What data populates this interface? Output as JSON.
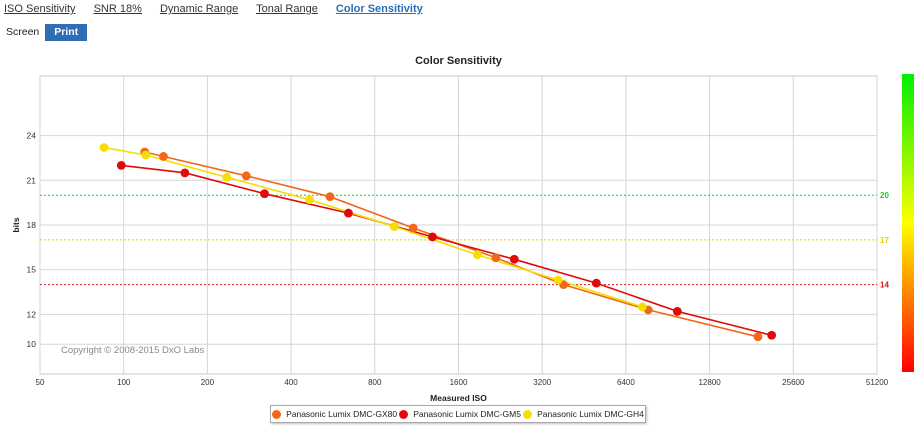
{
  "tabs": [
    {
      "label": "ISO Sensitivity",
      "active": false
    },
    {
      "label": "SNR 18%",
      "active": false
    },
    {
      "label": "Dynamic Range",
      "active": false
    },
    {
      "label": "Tonal Range",
      "active": false
    },
    {
      "label": "Color Sensitivity",
      "active": true
    }
  ],
  "view_toggle": {
    "screen_label": "Screen",
    "print_label": "Print",
    "selected": "Print"
  },
  "chart_data": {
    "type": "line",
    "title": "Color Sensitivity",
    "xlabel": "Measured ISO",
    "ylabel": "bits",
    "x_scale": "log2",
    "xlim": [
      50,
      51200
    ],
    "ylim": [
      8,
      28
    ],
    "x_ticks": [
      "50",
      "100",
      "200",
      "400",
      "800",
      "1600",
      "3200",
      "6400",
      "12800",
      "25600",
      "51200"
    ],
    "y_ticks": [
      10,
      12,
      15,
      18,
      21,
      24
    ],
    "grid": true,
    "copyright": "Copyright © 2008-2015 DxO Labs",
    "reference_lines": [
      {
        "value": 20,
        "label": "20",
        "color": "#22cc22"
      },
      {
        "value": 17,
        "label": "17",
        "color": "#e8d000"
      },
      {
        "value": 14,
        "label": "14",
        "color": "#dd1111"
      }
    ],
    "scale_bar": {
      "colors": [
        "#00ee00",
        "#ffff00",
        "#ff0000"
      ]
    },
    "legend_position": "bottom-center",
    "series": [
      {
        "name": "Panasonic Lumix DMC-GX80",
        "color": "#f26818",
        "x": [
          119,
          139,
          276,
          552,
          1100,
          2180,
          3820,
          7700,
          19100
        ],
        "y": [
          22.9,
          22.6,
          21.3,
          19.9,
          17.8,
          15.8,
          14.0,
          12.3,
          10.5
        ]
      },
      {
        "name": "Panasonic Lumix DMC-GM5",
        "color": "#e00a0a",
        "x": [
          98,
          166,
          321,
          643,
          1290,
          2540,
          5010,
          9800,
          21400
        ],
        "y": [
          22.0,
          21.5,
          20.1,
          18.8,
          17.2,
          15.7,
          14.1,
          12.2,
          10.6
        ]
      },
      {
        "name": "Panasonic Lumix DMC-GH4",
        "color": "#f5df00",
        "x": [
          85,
          120,
          235,
          466,
          940,
          1870,
          3650,
          7330
        ],
        "y": [
          23.2,
          22.7,
          21.2,
          19.7,
          17.9,
          16.0,
          14.3,
          12.5
        ]
      }
    ]
  }
}
